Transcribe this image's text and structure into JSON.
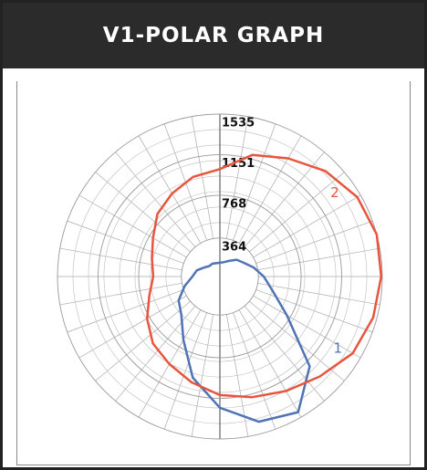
{
  "chart_data": {
    "type": "polar",
    "title": "V1-POLAR GRAPH",
    "theta": [
      0,
      15,
      30,
      45,
      60,
      75,
      90,
      105,
      120,
      135,
      150,
      165,
      180,
      195,
      210,
      225,
      240,
      255,
      270,
      285,
      300,
      315,
      330,
      345
    ],
    "series": [
      {
        "name": "1",
        "color": "#4f73b5",
        "values": [
          1240,
          1420,
          1480,
          1200,
          730,
          515,
          415,
          330,
          260,
          225,
          170,
          140,
          130,
          130,
          140,
          140,
          170,
          225,
          260,
          345,
          450,
          515,
          690,
          990
        ]
      },
      {
        "name": "2",
        "color": "#e8553e",
        "values": [
          1120,
          1180,
          1250,
          1335,
          1450,
          1500,
          1525,
          1535,
          1500,
          1410,
          1290,
          1190,
          1015,
          975,
          905,
          835,
          730,
          665,
          630,
          690,
          795,
          895,
          955,
          1035
        ]
      }
    ],
    "rlim": [
      0,
      1535
    ],
    "rticks": [
      364,
      768,
      1151,
      1535
    ]
  }
}
